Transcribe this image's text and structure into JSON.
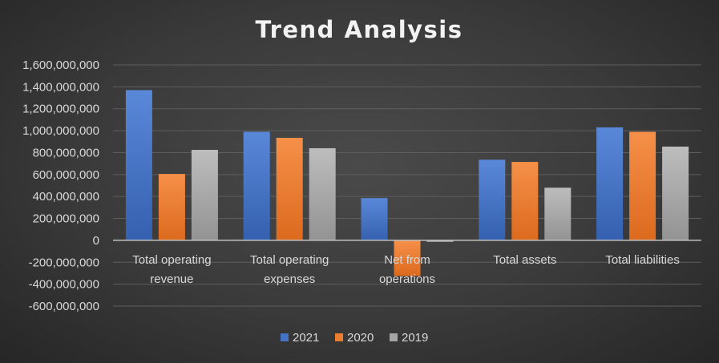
{
  "chart_data": {
    "type": "bar",
    "title": "Trend Analysis",
    "xlabel": "",
    "ylabel": "",
    "categories": [
      [
        "Total operating",
        "revenue"
      ],
      [
        "Total operating",
        "expenses"
      ],
      [
        "Net from",
        "operations"
      ],
      [
        "Total assets"
      ],
      [
        "Total liabilities"
      ]
    ],
    "series": [
      {
        "name": "2021",
        "color": "#4472c4",
        "values": [
          1370000000,
          990000000,
          385000000,
          735000000,
          1030000000
        ]
      },
      {
        "name": "2020",
        "color": "#ed7d31",
        "values": [
          605000000,
          935000000,
          -325000000,
          715000000,
          990000000
        ]
      },
      {
        "name": "2019",
        "color": "#a5a5a5",
        "values": [
          825000000,
          840000000,
          -15000000,
          480000000,
          855000000
        ]
      }
    ],
    "ylim": [
      -600000000,
      1600000000
    ],
    "yticks": [
      1600000000,
      1400000000,
      1200000000,
      1000000000,
      800000000,
      600000000,
      400000000,
      200000000,
      0,
      -200000000,
      -400000000,
      -600000000
    ],
    "ytick_labels": [
      "1,600,000,000",
      "1,400,000,000",
      "1,200,000,000",
      "1,000,000,000",
      "800,000,000",
      "600,000,000",
      "400,000,000",
      "200,000,000",
      "0",
      "-200,000,000",
      "-400,000,000",
      "-600,000,000"
    ],
    "grid": true,
    "legend_position": "bottom-center"
  }
}
